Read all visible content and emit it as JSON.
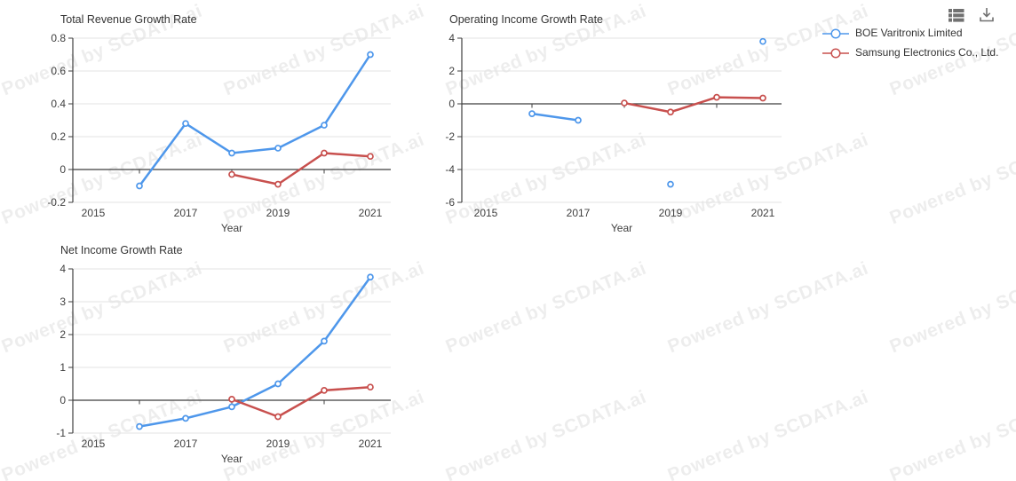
{
  "watermark": {
    "text": "Powered by SCDATA.ai"
  },
  "toolbar": {
    "icons": [
      {
        "name": "data-table-icon"
      },
      {
        "name": "download-icon"
      }
    ]
  },
  "legend": {
    "items": [
      {
        "label": "BOE Varitronix Limited",
        "color": "#4E97EB"
      },
      {
        "label": "Samsung Electronics Co., Ltd.",
        "color": "#C8504E"
      }
    ]
  },
  "colors": {
    "series_blue": "#4E97EB",
    "series_red": "#C8504E",
    "axis": "#3f3f3f",
    "gridline": "#e3e3e3",
    "text": "#404040",
    "icon_gray": "#717171"
  },
  "chart_data": [
    {
      "type": "line",
      "title": "Total Revenue Growth Rate",
      "x_axis": {
        "label": "Year",
        "ticks": [
          {
            "year": 2015,
            "label": "2015"
          },
          {
            "year": 2017,
            "label": "2017"
          },
          {
            "year": 2019,
            "label": "2019"
          },
          {
            "year": 2021,
            "label": "2021"
          }
        ],
        "minor_ticks": [
          2016,
          2018,
          2020
        ]
      },
      "ylim": [
        -0.2,
        0.8
      ],
      "y_ticks": [
        {
          "v": 0.8,
          "label": "0.8"
        },
        {
          "v": 0.6,
          "label": "0.6"
        },
        {
          "v": 0.4,
          "label": "0.4"
        },
        {
          "v": 0.2,
          "label": "0.2"
        },
        {
          "v": 0,
          "label": "0"
        },
        {
          "v": -0.2,
          "label": "-0.2"
        }
      ],
      "grid": true,
      "series": [
        {
          "name": "BOE Varitronix Limited",
          "color": "#4E97EB",
          "points": [
            [
              2016,
              -0.1
            ],
            [
              2017,
              0.28
            ],
            [
              2018,
              0.1
            ],
            [
              2019,
              0.13
            ],
            [
              2020,
              0.27
            ],
            [
              2021,
              0.7
            ]
          ]
        },
        {
          "name": "Samsung Electronics Co., Ltd.",
          "color": "#C8504E",
          "points": [
            [
              2018,
              -0.03
            ],
            [
              2019,
              -0.09
            ],
            [
              2020,
              0.1
            ],
            [
              2021,
              0.08
            ]
          ]
        }
      ]
    },
    {
      "type": "line",
      "title": "Operating Income Growth Rate",
      "x_axis": {
        "label": "Year",
        "ticks": [
          {
            "year": 2015,
            "label": "2015"
          },
          {
            "year": 2017,
            "label": "2017"
          },
          {
            "year": 2019,
            "label": "2019"
          },
          {
            "year": 2021,
            "label": "2021"
          }
        ],
        "minor_ticks": [
          2016,
          2018,
          2020
        ]
      },
      "ylim": [
        -6,
        4
      ],
      "y_ticks": [
        {
          "v": 4,
          "label": "4"
        },
        {
          "v": 2,
          "label": "2"
        },
        {
          "v": 0,
          "label": "0"
        },
        {
          "v": -2,
          "label": "-2"
        },
        {
          "v": -4,
          "label": "-4"
        },
        {
          "v": -6,
          "label": "-6"
        }
      ],
      "grid": true,
      "series": [
        {
          "name": "BOE Varitronix Limited",
          "color": "#4E97EB",
          "points": [
            [
              2016,
              -0.6
            ],
            [
              2017,
              -1.0
            ],
            [
              2019,
              -4.9
            ],
            [
              2021,
              3.8
            ]
          ]
        },
        {
          "name": "Samsung Electronics Co., Ltd.",
          "color": "#C8504E",
          "points": [
            [
              2018,
              0.05
            ],
            [
              2019,
              -0.5
            ],
            [
              2020,
              0.4
            ],
            [
              2021,
              0.35
            ]
          ]
        }
      ]
    },
    {
      "type": "line",
      "title": "Net Income Growth Rate",
      "x_axis": {
        "label": "Year",
        "ticks": [
          {
            "year": 2015,
            "label": "2015"
          },
          {
            "year": 2017,
            "label": "2017"
          },
          {
            "year": 2019,
            "label": "2019"
          },
          {
            "year": 2021,
            "label": "2021"
          }
        ],
        "minor_ticks": [
          2016,
          2018,
          2020
        ]
      },
      "ylim": [
        -1,
        4
      ],
      "y_ticks": [
        {
          "v": 4,
          "label": "4"
        },
        {
          "v": 3,
          "label": "3"
        },
        {
          "v": 2,
          "label": "2"
        },
        {
          "v": 1,
          "label": "1"
        },
        {
          "v": 0,
          "label": "0"
        },
        {
          "v": -1,
          "label": "-1"
        }
      ],
      "grid": true,
      "series": [
        {
          "name": "BOE Varitronix Limited",
          "color": "#4E97EB",
          "points": [
            [
              2016,
              -0.8
            ],
            [
              2017,
              -0.55
            ],
            [
              2018,
              -0.2
            ],
            [
              2019,
              0.5
            ],
            [
              2020,
              1.8
            ],
            [
              2021,
              3.75
            ]
          ]
        },
        {
          "name": "Samsung Electronics Co., Ltd.",
          "color": "#C8504E",
          "points": [
            [
              2018,
              0.03
            ],
            [
              2019,
              -0.5
            ],
            [
              2020,
              0.3
            ],
            [
              2021,
              0.4
            ]
          ]
        }
      ]
    }
  ]
}
